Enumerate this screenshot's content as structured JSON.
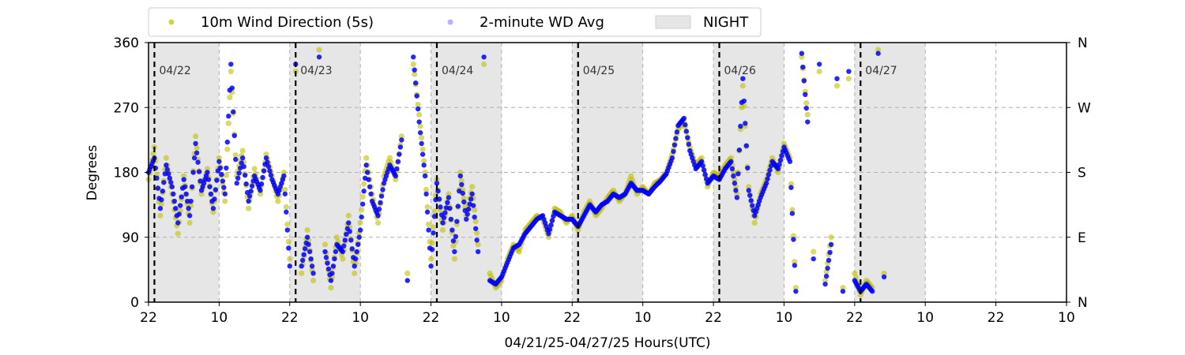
{
  "chart_data": {
    "type": "scatter",
    "xlabel": "04/21/25-04/27/25  Hours(UTC)",
    "ylabel": "Degrees",
    "x_unit": "hours since 04/21 22:00 UTC",
    "xlim": [
      0,
      156
    ],
    "ylim": [
      0,
      360
    ],
    "x_ticks": [
      {
        "x": 0,
        "label": "22"
      },
      {
        "x": 12,
        "label": "10"
      },
      {
        "x": 24,
        "label": "22"
      },
      {
        "x": 36,
        "label": "10"
      },
      {
        "x": 48,
        "label": "22"
      },
      {
        "x": 60,
        "label": "10"
      },
      {
        "x": 72,
        "label": "22"
      },
      {
        "x": 84,
        "label": "10"
      },
      {
        "x": 96,
        "label": "22"
      },
      {
        "x": 108,
        "label": "10"
      },
      {
        "x": 120,
        "label": "22"
      },
      {
        "x": 132,
        "label": "10"
      },
      {
        "x": 144,
        "label": "22"
      },
      {
        "x": 156,
        "label": "10"
      }
    ],
    "y_ticks": [
      0,
      90,
      180,
      270,
      360
    ],
    "y_ticks_right": [
      {
        "y": 0,
        "label": "N"
      },
      {
        "y": 90,
        "label": "E"
      },
      {
        "y": 180,
        "label": "S"
      },
      {
        "y": 270,
        "label": "W"
      },
      {
        "y": 360,
        "label": "N"
      }
    ],
    "grid": true,
    "legend_position": "top",
    "day_markers": [
      {
        "x": 1,
        "label": "04/22"
      },
      {
        "x": 25,
        "label": "04/23"
      },
      {
        "x": 49,
        "label": "04/24"
      },
      {
        "x": 73,
        "label": "04/25"
      },
      {
        "x": 97,
        "label": "04/26"
      },
      {
        "x": 121,
        "label": "04/27"
      }
    ],
    "night_periods": [
      [
        0,
        12
      ],
      [
        24,
        36
      ],
      [
        48,
        60
      ],
      [
        72,
        84
      ],
      [
        96,
        108
      ],
      [
        120,
        132
      ]
    ],
    "series": [
      {
        "name": "10m Wind Direction (5s)",
        "color": "#bfbf00",
        "points": [
          [
            0,
            170
          ],
          [
            1,
            215
          ],
          [
            2,
            120
          ],
          [
            3,
            200
          ],
          [
            4,
            150
          ],
          [
            5,
            95
          ],
          [
            6,
            175
          ],
          [
            7,
            110
          ],
          [
            8,
            230
          ],
          [
            9,
            150
          ],
          [
            10,
            185
          ],
          [
            11,
            125
          ],
          [
            12,
            200
          ],
          [
            13,
            140
          ],
          [
            14,
            320
          ],
          [
            15,
            175
          ],
          [
            16,
            210
          ],
          [
            17,
            130
          ],
          [
            18,
            185
          ],
          [
            19,
            150
          ],
          [
            20,
            205
          ],
          [
            21,
            175
          ],
          [
            22,
            140
          ],
          [
            23,
            180
          ],
          [
            24,
            60
          ],
          [
            25,
            320
          ],
          [
            26,
            40
          ],
          [
            27,
            100
          ],
          [
            28,
            30
          ],
          [
            29,
            350
          ],
          [
            30,
            80
          ],
          [
            31,
            20
          ],
          [
            32,
            90
          ],
          [
            33,
            60
          ],
          [
            34,
            120
          ],
          [
            35,
            40
          ],
          [
            36,
            110
          ],
          [
            37,
            200
          ],
          [
            38,
            150
          ],
          [
            39,
            110
          ],
          [
            40,
            175
          ],
          [
            41,
            200
          ],
          [
            42,
            170
          ],
          [
            43,
            230
          ],
          [
            44,
            40
          ],
          [
            45,
            330
          ],
          [
            46,
            260
          ],
          [
            47,
            180
          ],
          [
            48,
            60
          ],
          [
            49,
            170
          ],
          [
            50,
            100
          ],
          [
            51,
            150
          ],
          [
            52,
            60
          ],
          [
            53,
            180
          ],
          [
            54,
            120
          ],
          [
            55,
            160
          ],
          [
            56,
            80
          ],
          [
            57,
            330
          ],
          [
            58,
            40
          ],
          [
            59,
            20
          ],
          [
            60,
            30
          ],
          [
            61,
            60
          ],
          [
            62,
            80
          ],
          [
            63,
            70
          ],
          [
            64,
            100
          ],
          [
            65,
            110
          ],
          [
            66,
            120
          ],
          [
            67,
            115
          ],
          [
            68,
            90
          ],
          [
            69,
            130
          ],
          [
            70,
            125
          ],
          [
            71,
            110
          ],
          [
            72,
            120
          ],
          [
            73,
            100
          ],
          [
            74,
            125
          ],
          [
            75,
            140
          ],
          [
            76,
            120
          ],
          [
            77,
            130
          ],
          [
            78,
            145
          ],
          [
            79,
            155
          ],
          [
            80,
            140
          ],
          [
            81,
            150
          ],
          [
            82,
            175
          ],
          [
            83,
            150
          ],
          [
            84,
            160
          ],
          [
            85,
            150
          ],
          [
            86,
            165
          ],
          [
            87,
            170
          ],
          [
            88,
            180
          ],
          [
            89,
            205
          ],
          [
            90,
            240
          ],
          [
            91,
            250
          ],
          [
            92,
            215
          ],
          [
            93,
            190
          ],
          [
            94,
            200
          ],
          [
            95,
            160
          ],
          [
            96,
            180
          ],
          [
            97,
            175
          ],
          [
            98,
            190
          ],
          [
            99,
            200
          ],
          [
            100,
            150
          ],
          [
            101,
            300
          ],
          [
            102,
            160
          ],
          [
            103,
            110
          ],
          [
            104,
            150
          ],
          [
            105,
            170
          ],
          [
            106,
            200
          ],
          [
            107,
            180
          ],
          [
            108,
            220
          ],
          [
            109,
            200
          ],
          [
            110,
            20
          ],
          [
            111,
            340
          ],
          [
            112,
            260
          ],
          [
            113,
            70
          ],
          [
            114,
            320
          ],
          [
            115,
            30
          ],
          [
            116,
            90
          ],
          [
            117,
            300
          ],
          [
            118,
            20
          ],
          [
            119,
            310
          ],
          [
            120,
            40
          ],
          [
            121,
            10
          ],
          [
            122,
            30
          ],
          [
            123,
            20
          ],
          [
            124,
            350
          ],
          [
            125,
            40
          ]
        ]
      },
      {
        "name": "2-minute WD Avg",
        "color": "#0000ff",
        "points": [
          [
            0,
            180
          ],
          [
            1,
            200
          ],
          [
            2,
            130
          ],
          [
            3,
            190
          ],
          [
            4,
            160
          ],
          [
            5,
            110
          ],
          [
            6,
            170
          ],
          [
            7,
            120
          ],
          [
            8,
            220
          ],
          [
            9,
            155
          ],
          [
            10,
            180
          ],
          [
            11,
            130
          ],
          [
            12,
            195
          ],
          [
            13,
            150
          ],
          [
            14,
            330
          ],
          [
            15,
            165
          ],
          [
            16,
            200
          ],
          [
            17,
            140
          ],
          [
            18,
            175
          ],
          [
            19,
            155
          ],
          [
            20,
            200
          ],
          [
            21,
            170
          ],
          [
            22,
            150
          ],
          [
            23,
            175
          ],
          [
            24,
            50
          ],
          [
            25,
            330
          ],
          [
            26,
            50
          ],
          [
            27,
            90
          ],
          [
            28,
            40
          ],
          [
            29,
            340
          ],
          [
            30,
            70
          ],
          [
            31,
            30
          ],
          [
            32,
            80
          ],
          [
            33,
            70
          ],
          [
            34,
            110
          ],
          [
            35,
            50
          ],
          [
            36,
            100
          ],
          [
            37,
            190
          ],
          [
            38,
            140
          ],
          [
            39,
            120
          ],
          [
            40,
            165
          ],
          [
            41,
            190
          ],
          [
            42,
            175
          ],
          [
            43,
            225
          ],
          [
            44,
            30
          ],
          [
            45,
            340
          ],
          [
            46,
            250
          ],
          [
            47,
            175
          ],
          [
            48,
            50
          ],
          [
            49,
            165
          ],
          [
            50,
            110
          ],
          [
            51,
            145
          ],
          [
            52,
            70
          ],
          [
            53,
            175
          ],
          [
            54,
            115
          ],
          [
            55,
            150
          ],
          [
            56,
            70
          ],
          [
            57,
            340
          ],
          [
            58,
            30
          ],
          [
            59,
            25
          ],
          [
            60,
            35
          ],
          [
            61,
            55
          ],
          [
            62,
            75
          ],
          [
            63,
            80
          ],
          [
            64,
            95
          ],
          [
            65,
            105
          ],
          [
            66,
            115
          ],
          [
            67,
            120
          ],
          [
            68,
            95
          ],
          [
            69,
            125
          ],
          [
            70,
            120
          ],
          [
            71,
            115
          ],
          [
            72,
            115
          ],
          [
            73,
            105
          ],
          [
            74,
            120
          ],
          [
            75,
            135
          ],
          [
            76,
            125
          ],
          [
            77,
            135
          ],
          [
            78,
            140
          ],
          [
            79,
            150
          ],
          [
            80,
            145
          ],
          [
            81,
            150
          ],
          [
            82,
            165
          ],
          [
            83,
            155
          ],
          [
            84,
            155
          ],
          [
            85,
            150
          ],
          [
            86,
            160
          ],
          [
            87,
            168
          ],
          [
            88,
            178
          ],
          [
            89,
            200
          ],
          [
            90,
            245
          ],
          [
            91,
            255
          ],
          [
            92,
            210
          ],
          [
            93,
            185
          ],
          [
            94,
            195
          ],
          [
            95,
            165
          ],
          [
            96,
            175
          ],
          [
            97,
            170
          ],
          [
            98,
            185
          ],
          [
            99,
            195
          ],
          [
            100,
            145
          ],
          [
            101,
            310
          ],
          [
            102,
            155
          ],
          [
            103,
            120
          ],
          [
            104,
            145
          ],
          [
            105,
            165
          ],
          [
            106,
            195
          ],
          [
            107,
            185
          ],
          [
            108,
            215
          ],
          [
            109,
            195
          ],
          [
            110,
            15
          ],
          [
            111,
            345
          ],
          [
            112,
            250
          ],
          [
            113,
            60
          ],
          [
            114,
            330
          ],
          [
            115,
            25
          ],
          [
            116,
            80
          ],
          [
            117,
            310
          ],
          [
            118,
            15
          ],
          [
            119,
            320
          ],
          [
            120,
            30
          ],
          [
            121,
            15
          ],
          [
            122,
            25
          ],
          [
            123,
            15
          ],
          [
            124,
            345
          ],
          [
            125,
            35
          ]
        ]
      }
    ]
  },
  "legend": {
    "items": [
      {
        "label": "10m Wind Direction (5s)",
        "kind": "marker",
        "color": "#bfbf00"
      },
      {
        "label": "2-minute WD Avg",
        "kind": "marker",
        "color": "#0000ff"
      },
      {
        "label": "NIGHT",
        "kind": "patch",
        "color": "#e6e6e6"
      }
    ]
  }
}
